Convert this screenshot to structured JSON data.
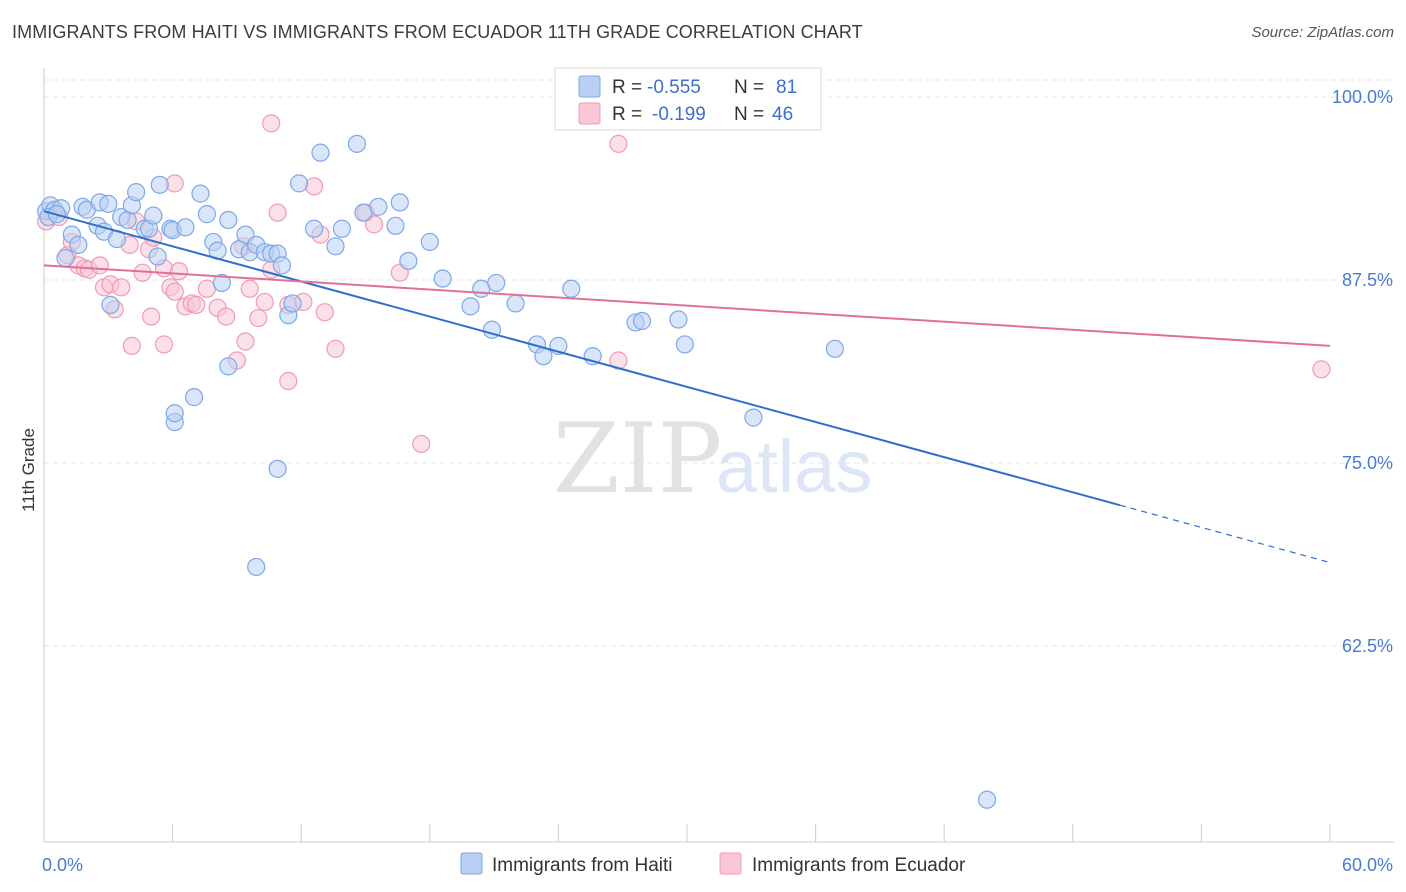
{
  "title": "IMMIGRANTS FROM HAITI VS IMMIGRANTS FROM ECUADOR 11TH GRADE CORRELATION CHART",
  "source": "Source: ZipAtlas.com",
  "watermark": {
    "zip": "ZIP",
    "atlas": "atlas"
  },
  "chart_data": {
    "type": "scatter",
    "xlabel": "",
    "ylabel": "11th Grade",
    "xlim": [
      0,
      60
    ],
    "ylim": [
      47,
      102
    ],
    "x_tick_labels": [
      {
        "value": 0,
        "label": "0.0%"
      },
      {
        "value": 60,
        "label": "60.0%"
      }
    ],
    "y_ticks": [
      {
        "value": 100,
        "label": "100.0%"
      },
      {
        "value": 87.5,
        "label": "87.5%"
      },
      {
        "value": 75,
        "label": "75.0%"
      },
      {
        "value": 62.5,
        "label": "62.5%"
      }
    ],
    "legend": [
      {
        "r_label": "R =",
        "r": "-0.555",
        "n_label": "N =",
        "n": "81"
      },
      {
        "r_label": "R =",
        "r": "-0.199",
        "n_label": "N =",
        "n": "46"
      }
    ],
    "series": [
      {
        "name": "Immigrants from Haiti",
        "color": "#7fa8e6",
        "fill": "#b9d0f2",
        "line_color": "#2f6fcc",
        "trend": {
          "x0": 0,
          "y0": 92.2,
          "x1": 60,
          "y1": 68.2,
          "solid_until": 50.2
        },
        "points": [
          [
            0.1,
            92.2
          ],
          [
            0.3,
            92.6
          ],
          [
            0.5,
            92.3
          ],
          [
            0.2,
            91.8
          ],
          [
            0.8,
            92.4
          ],
          [
            0.6,
            92.0
          ],
          [
            1.3,
            90.6
          ],
          [
            1.6,
            89.9
          ],
          [
            1.0,
            89.0
          ],
          [
            1.8,
            92.5
          ],
          [
            2.0,
            92.3
          ],
          [
            2.5,
            91.2
          ],
          [
            2.6,
            92.8
          ],
          [
            2.8,
            90.8
          ],
          [
            3.0,
            92.7
          ],
          [
            3.4,
            90.3
          ],
          [
            3.6,
            91.8
          ],
          [
            3.9,
            91.6
          ],
          [
            4.1,
            92.6
          ],
          [
            4.3,
            93.5
          ],
          [
            4.7,
            91.0
          ],
          [
            4.9,
            91.0
          ],
          [
            5.1,
            91.9
          ],
          [
            5.3,
            89.1
          ],
          [
            5.4,
            94.0
          ],
          [
            5.9,
            91.0
          ],
          [
            6.0,
            90.9
          ],
          [
            6.6,
            91.1
          ],
          [
            7.3,
            93.4
          ],
          [
            7.6,
            92.0
          ],
          [
            7.9,
            90.1
          ],
          [
            8.1,
            89.5
          ],
          [
            8.3,
            87.3
          ],
          [
            8.6,
            91.6
          ],
          [
            9.1,
            89.6
          ],
          [
            9.4,
            90.6
          ],
          [
            9.6,
            89.4
          ],
          [
            9.9,
            89.9
          ],
          [
            10.3,
            89.4
          ],
          [
            10.6,
            89.3
          ],
          [
            10.9,
            89.3
          ],
          [
            11.1,
            88.5
          ],
          [
            11.4,
            85.1
          ],
          [
            11.6,
            85.9
          ],
          [
            11.9,
            94.1
          ],
          [
            12.6,
            91.0
          ],
          [
            12.9,
            96.2
          ],
          [
            13.6,
            89.8
          ],
          [
            13.9,
            91.0
          ],
          [
            14.6,
            96.8
          ],
          [
            14.9,
            92.1
          ],
          [
            15.6,
            92.5
          ],
          [
            16.4,
            91.2
          ],
          [
            16.6,
            92.8
          ],
          [
            17.0,
            88.8
          ],
          [
            18.0,
            90.1
          ],
          [
            18.6,
            87.6
          ],
          [
            19.9,
            85.7
          ],
          [
            20.4,
            86.9
          ],
          [
            21.1,
            87.3
          ],
          [
            20.9,
            84.1
          ],
          [
            22.0,
            85.9
          ],
          [
            23.0,
            83.1
          ],
          [
            23.3,
            82.3
          ],
          [
            24.0,
            83.0
          ],
          [
            24.6,
            86.9
          ],
          [
            25.6,
            82.3
          ],
          [
            27.6,
            84.6
          ],
          [
            27.9,
            84.7
          ],
          [
            29.6,
            84.8
          ],
          [
            29.9,
            83.1
          ],
          [
            33.1,
            78.1
          ],
          [
            36.9,
            82.8
          ],
          [
            44.0,
            52.0
          ],
          [
            6.1,
            77.8
          ],
          [
            7.0,
            79.5
          ],
          [
            8.6,
            81.6
          ],
          [
            10.9,
            74.6
          ],
          [
            6.1,
            78.4
          ],
          [
            9.9,
            67.9
          ],
          [
            3.1,
            85.8
          ]
        ]
      },
      {
        "name": "Immigrants from Ecuador",
        "color": "#f09ab8",
        "fill": "#f8c6d6",
        "line_color": "#e0709a",
        "trend": {
          "x0": 0,
          "y0": 88.5,
          "x1": 60,
          "y1": 83.0
        },
        "points": [
          [
            0.1,
            91.5
          ],
          [
            0.4,
            92.2
          ],
          [
            0.7,
            91.8
          ],
          [
            1.1,
            89.2
          ],
          [
            1.3,
            90.1
          ],
          [
            1.6,
            88.5
          ],
          [
            1.9,
            88.3
          ],
          [
            2.1,
            88.2
          ],
          [
            2.6,
            88.5
          ],
          [
            2.8,
            87.0
          ],
          [
            3.1,
            87.2
          ],
          [
            3.3,
            85.5
          ],
          [
            3.6,
            87.0
          ],
          [
            4.0,
            89.9
          ],
          [
            4.3,
            91.5
          ],
          [
            4.6,
            88.0
          ],
          [
            4.9,
            89.6
          ],
          [
            5.1,
            90.4
          ],
          [
            5.6,
            88.3
          ],
          [
            5.9,
            87.0
          ],
          [
            6.1,
            86.7
          ],
          [
            6.3,
            88.1
          ],
          [
            6.6,
            85.7
          ],
          [
            6.9,
            85.9
          ],
          [
            7.1,
            85.8
          ],
          [
            7.6,
            86.9
          ],
          [
            8.1,
            85.6
          ],
          [
            8.5,
            85.0
          ],
          [
            9.0,
            82.0
          ],
          [
            9.3,
            89.8
          ],
          [
            9.6,
            86.9
          ],
          [
            10.0,
            84.9
          ],
          [
            10.3,
            86.0
          ],
          [
            10.6,
            88.2
          ],
          [
            10.9,
            92.1
          ],
          [
            11.4,
            85.8
          ],
          [
            12.1,
            86.0
          ],
          [
            12.6,
            93.9
          ],
          [
            13.1,
            85.3
          ],
          [
            13.6,
            82.8
          ],
          [
            15.0,
            92.1
          ],
          [
            15.4,
            91.3
          ],
          [
            16.6,
            88.0
          ],
          [
            17.6,
            76.3
          ],
          [
            26.8,
            82.0
          ],
          [
            59.6,
            81.4
          ]
        ],
        "extra_points": [
          [
            10.6,
            98.2
          ],
          [
            26.8,
            96.8
          ],
          [
            6.1,
            94.1
          ],
          [
            9.4,
            83.3
          ],
          [
            5.0,
            85.0
          ],
          [
            4.1,
            83.0
          ],
          [
            5.6,
            83.1
          ],
          [
            11.4,
            80.6
          ],
          [
            12.9,
            90.6
          ]
        ]
      }
    ]
  },
  "bottom_legend": [
    "Immigrants from Haiti",
    "Immigrants from Ecuador"
  ]
}
